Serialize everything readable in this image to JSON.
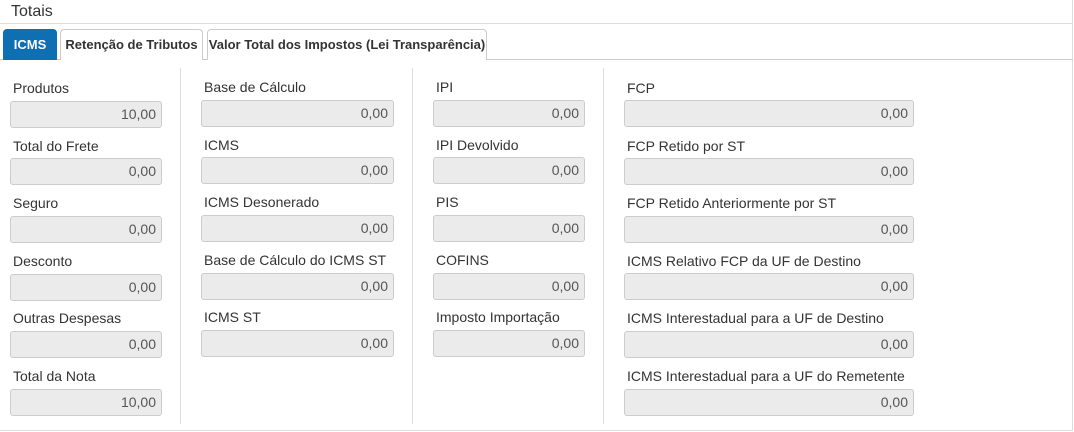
{
  "panel": {
    "title": "Totais"
  },
  "tabs": [
    {
      "label": "ICMS",
      "active": true
    },
    {
      "label": "Retenção de Tributos",
      "active": false
    },
    {
      "label": "Valor Total dos Impostos (Lei Transparência)",
      "active": false
    }
  ],
  "col1": {
    "produtos": {
      "label": "Produtos",
      "value": "10,00"
    },
    "frete": {
      "label": "Total do Frete",
      "value": "0,00"
    },
    "seguro": {
      "label": "Seguro",
      "value": "0,00"
    },
    "desconto": {
      "label": "Desconto",
      "value": "0,00"
    },
    "outras": {
      "label": "Outras Despesas",
      "value": "0,00"
    },
    "total": {
      "label": "Total da Nota",
      "value": "10,00"
    }
  },
  "col2": {
    "base": {
      "label": "Base de Cálculo",
      "value": "0,00"
    },
    "icms": {
      "label": "ICMS",
      "value": "0,00"
    },
    "desonerado": {
      "label": "ICMS Desonerado",
      "value": "0,00"
    },
    "base_st": {
      "label": "Base de Cálculo do ICMS ST",
      "value": "0,00"
    },
    "icms_st": {
      "label": "ICMS ST",
      "value": "0,00"
    }
  },
  "col3": {
    "ipi": {
      "label": "IPI",
      "value": "0,00"
    },
    "ipi_dev": {
      "label": "IPI Devolvido",
      "value": "0,00"
    },
    "pis": {
      "label": "PIS",
      "value": "0,00"
    },
    "cofins": {
      "label": "COFINS",
      "value": "0,00"
    },
    "importacao": {
      "label": "Imposto Importação",
      "value": "0,00"
    }
  },
  "col4": {
    "fcp": {
      "label": "FCP",
      "value": "0,00"
    },
    "fcp_st": {
      "label": "FCP Retido por ST",
      "value": "0,00"
    },
    "fcp_st_ant": {
      "label": "FCP Retido Anteriormente por ST",
      "value": "0,00"
    },
    "icms_fcp_uf": {
      "label": "ICMS Relativo FCP da UF de Destino",
      "value": "0,00"
    },
    "icms_inter_dest": {
      "label": "ICMS Interestadual para a UF de Destino",
      "value": "0,00"
    },
    "icms_inter_rem": {
      "label": "ICMS Interestadual para a UF do Remetente",
      "value": "0,00"
    }
  }
}
